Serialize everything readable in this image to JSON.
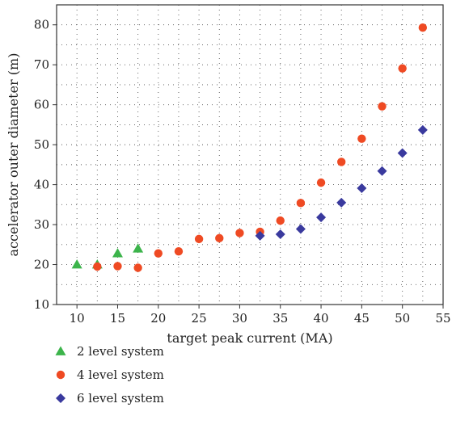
{
  "chart_data": {
    "type": "scatter",
    "xlabel": "target peak current (MA)",
    "ylabel": "accelerator outer diameter (m)",
    "xlim": [
      7.5,
      55
    ],
    "ylim": [
      10,
      85
    ],
    "xticks": [
      10,
      15,
      20,
      25,
      30,
      35,
      40,
      45,
      50,
      55
    ],
    "yticks": [
      10,
      20,
      30,
      40,
      50,
      60,
      70,
      80
    ],
    "grid": "dotted",
    "legend_position": "below-left",
    "series": [
      {
        "name": "2 level system",
        "marker": "triangle",
        "color": "#3cb44b",
        "x": [
          10,
          12.5,
          15,
          17.5
        ],
        "y": [
          20.0,
          20.0,
          22.8,
          24.0
        ]
      },
      {
        "name": "4 level system",
        "marker": "circle",
        "color": "#ef4a23",
        "x": [
          12.5,
          15,
          17.5,
          20,
          22.5,
          25,
          27.5,
          30,
          32.5,
          35,
          37.5,
          40,
          42.5,
          45,
          47.5,
          50,
          52.5
        ],
        "y": [
          19.5,
          19.6,
          19.2,
          22.8,
          23.3,
          26.4,
          26.6,
          27.9,
          28.2,
          31.0,
          35.4,
          40.5,
          45.7,
          51.5,
          59.6,
          69.1,
          79.3
        ]
      },
      {
        "name": "6 level system",
        "marker": "diamond",
        "color": "#3a3a9e",
        "x": [
          32.5,
          35,
          37.5,
          40,
          42.5,
          45,
          47.5,
          50,
          52.5
        ],
        "y": [
          27.2,
          27.6,
          28.9,
          31.8,
          35.5,
          39.1,
          43.4,
          47.9,
          53.7
        ]
      }
    ]
  }
}
